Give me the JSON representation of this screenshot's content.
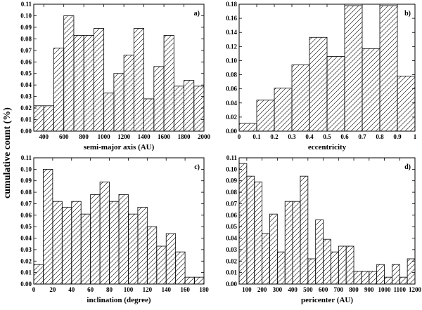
{
  "figure": {
    "ylabel": "cumulative count (%)"
  },
  "chart_data": [
    {
      "type": "bar",
      "panel_label": "a)",
      "xlabel": "semi-major axis (AU)",
      "xlim": [
        300,
        2000
      ],
      "ylim": [
        0,
        0.11
      ],
      "xticks": [
        400,
        600,
        800,
        1000,
        1200,
        1400,
        1600,
        1800,
        2000
      ],
      "yticks": [
        0.0,
        0.01,
        0.02,
        0.03,
        0.04,
        0.05,
        0.06,
        0.07,
        0.08,
        0.09,
        0.1,
        0.11
      ],
      "ytick_decimals": 2,
      "bin_edges": [
        300,
        400,
        500,
        600,
        700,
        800,
        900,
        1000,
        1100,
        1200,
        1300,
        1400,
        1500,
        1600,
        1700,
        1800,
        1900,
        2000
      ],
      "values": [
        0.022,
        0.022,
        0.072,
        0.1,
        0.083,
        0.083,
        0.089,
        0.033,
        0.05,
        0.066,
        0.089,
        0.028,
        0.056,
        0.083,
        0.039,
        0.044,
        0.039
      ]
    },
    {
      "type": "bar",
      "panel_label": "b)",
      "xlabel": "eccentricity",
      "xlim": [
        0,
        1.0
      ],
      "ylim": [
        0,
        0.18
      ],
      "xticks": [
        0.0,
        0.1,
        0.2,
        0.3,
        0.4,
        0.5,
        0.6,
        0.7,
        0.8,
        0.9,
        1.0
      ],
      "yticks": [
        0.0,
        0.02,
        0.04,
        0.06,
        0.08,
        0.1,
        0.12,
        0.14,
        0.16,
        0.18
      ],
      "ytick_decimals": 2,
      "bin_edges": [
        0.0,
        0.1,
        0.2,
        0.3,
        0.4,
        0.5,
        0.6,
        0.7,
        0.8,
        0.9,
        1.0
      ],
      "values": [
        0.011,
        0.044,
        0.061,
        0.094,
        0.133,
        0.106,
        0.178,
        0.117,
        0.178,
        0.078
      ]
    },
    {
      "type": "bar",
      "panel_label": "c)",
      "xlabel": "inclination (degree)",
      "xlim": [
        0,
        180
      ],
      "ylim": [
        0,
        0.11
      ],
      "xticks": [
        0,
        20,
        40,
        60,
        80,
        100,
        120,
        140,
        160,
        180
      ],
      "yticks": [
        0.0,
        0.01,
        0.02,
        0.03,
        0.04,
        0.05,
        0.06,
        0.07,
        0.08,
        0.09,
        0.1,
        0.11
      ],
      "ytick_decimals": 2,
      "bin_edges": [
        0,
        10,
        20,
        30,
        40,
        50,
        60,
        70,
        80,
        90,
        100,
        110,
        120,
        130,
        140,
        150,
        160,
        170,
        180
      ],
      "values": [
        0.017,
        0.1,
        0.072,
        0.067,
        0.072,
        0.061,
        0.078,
        0.089,
        0.072,
        0.078,
        0.061,
        0.067,
        0.05,
        0.033,
        0.044,
        0.028,
        0.006,
        0.006
      ]
    },
    {
      "type": "bar",
      "panel_label": "d)",
      "xlabel": "pericenter (AU)",
      "xlim": [
        50,
        1200
      ],
      "ylim": [
        0,
        0.11
      ],
      "xticks": [
        100,
        200,
        300,
        400,
        500,
        600,
        700,
        800,
        900,
        1000,
        1100,
        1200
      ],
      "xtick_labels": [
        "100",
        "200",
        "300",
        "400",
        "500",
        "600",
        "700",
        "800",
        "900",
        "1000",
        "1100",
        "1200"
      ],
      "yticks": [
        0.0,
        0.01,
        0.02,
        0.03,
        0.04,
        0.05,
        0.06,
        0.07,
        0.08,
        0.09,
        0.1,
        0.11
      ],
      "ytick_decimals": 2,
      "bin_edges": [
        50,
        100,
        150,
        200,
        250,
        300,
        350,
        400,
        450,
        500,
        550,
        600,
        650,
        700,
        750,
        800,
        850,
        900,
        950,
        1000,
        1050,
        1100,
        1150,
        1200
      ],
      "values": [
        0.105,
        0.094,
        0.089,
        0.044,
        0.061,
        0.028,
        0.072,
        0.072,
        0.094,
        0.022,
        0.056,
        0.039,
        0.028,
        0.033,
        0.033,
        0.011,
        0.011,
        0.011,
        0.017,
        0.006,
        0.017,
        0.006,
        0.022
      ]
    }
  ]
}
